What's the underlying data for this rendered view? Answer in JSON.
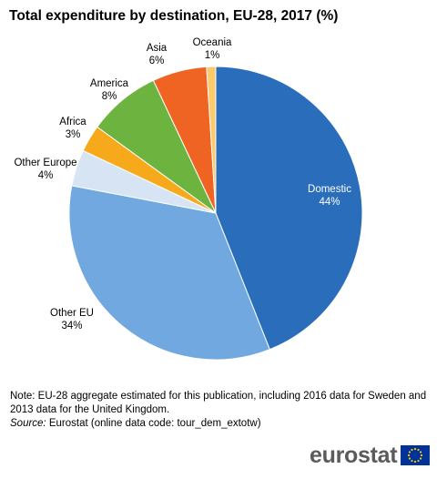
{
  "title": "Total expenditure by destination, EU-28, 2017 (%)",
  "chart_data": {
    "type": "pie",
    "title": "Total expenditure by destination, EU-28, 2017 (%)",
    "slices": [
      {
        "label": "Domestic",
        "value": 44,
        "value_label": "44%",
        "color": "#2a6ebb"
      },
      {
        "label": "Other EU",
        "value": 34,
        "value_label": "34%",
        "color": "#71a8e0"
      },
      {
        "label": "Other Europe",
        "value": 4,
        "value_label": "4%",
        "color": "#d6e4f3"
      },
      {
        "label": "Africa",
        "value": 3,
        "value_label": "3%",
        "color": "#f6a91b"
      },
      {
        "label": "America",
        "value": 8,
        "value_label": "8%",
        "color": "#6cb43f"
      },
      {
        "label": "Asia",
        "value": 6,
        "value_label": "6%",
        "color": "#ef6422"
      },
      {
        "label": "Oceania",
        "value": 1,
        "value_label": "1%",
        "color": "#fcc96c"
      }
    ],
    "start": "12 o'clock",
    "direction": "clockwise",
    "legend": "none"
  },
  "note": "Note: EU-28 aggregate estimated for this publication, including 2016 data for Sweden and 2013 data for the United Kingdom.",
  "source": {
    "label": "Source:",
    "text": " Eurostat (online data code: tour_dem_extotw)"
  },
  "logo": {
    "text": "eurostat",
    "flag_color": "#003399",
    "star_color": "#ffcc00"
  }
}
